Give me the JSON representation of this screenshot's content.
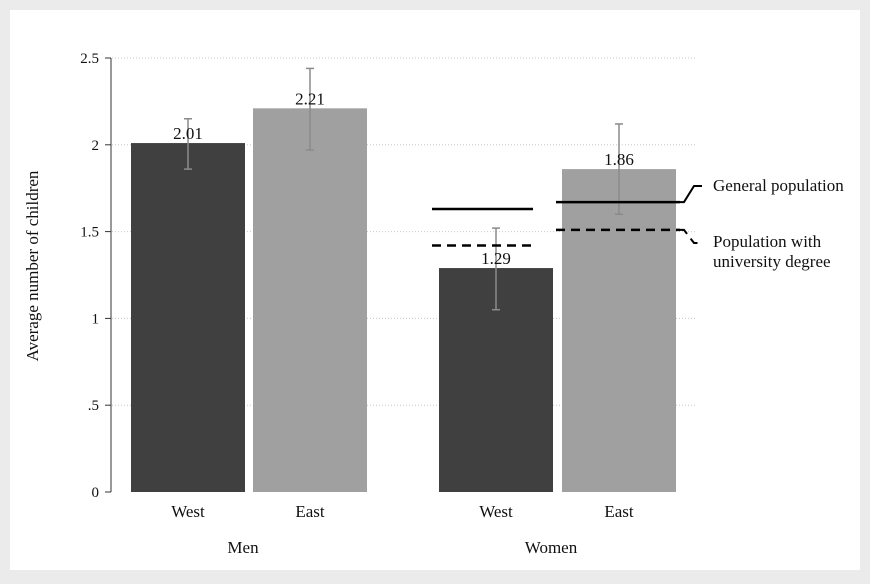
{
  "chart_data": {
    "type": "bar",
    "ylabel": "Average number of children",
    "ylim": [
      0,
      2.5
    ],
    "yticks": [
      {
        "value": 0,
        "label": "0"
      },
      {
        "value": 0.5,
        "label": ".5"
      },
      {
        "value": 1,
        "label": "1"
      },
      {
        "value": 1.5,
        "label": "1.5"
      },
      {
        "value": 2,
        "label": "2"
      },
      {
        "value": 2.5,
        "label": "2.5"
      }
    ],
    "grid": true,
    "groups": [
      {
        "label": "Men",
        "bars": [
          {
            "category": "West",
            "value": 2.01,
            "value_label": "2.01",
            "ci": [
              1.86,
              2.15
            ]
          },
          {
            "category": "East",
            "value": 2.21,
            "value_label": "2.21",
            "ci": [
              1.97,
              2.44
            ]
          }
        ]
      },
      {
        "label": "Women",
        "bars": [
          {
            "category": "West",
            "value": 1.29,
            "value_label": "1.29",
            "ci": [
              1.05,
              1.52
            ]
          },
          {
            "category": "East",
            "value": 1.86,
            "value_label": "1.86",
            "ci": [
              1.6,
              2.12
            ]
          }
        ]
      }
    ],
    "reference_lines": [
      {
        "label": "General population",
        "style": "solid",
        "group": "Women",
        "west": 1.63,
        "east": 1.67
      },
      {
        "label_lines": [
          "Population with",
          "university degree"
        ],
        "style": "dashed",
        "group": "Women",
        "west": 1.42,
        "east": 1.51
      }
    ],
    "colors": {
      "background": "#ebebeb",
      "plot_background": "#ffffff",
      "west_bar": "#404040",
      "east_bar": "#a0a0a0",
      "error_bar": "#8a8a8a",
      "gridline": "#c8c8c8",
      "axis": "#333333",
      "reference_line": "#000000"
    }
  }
}
